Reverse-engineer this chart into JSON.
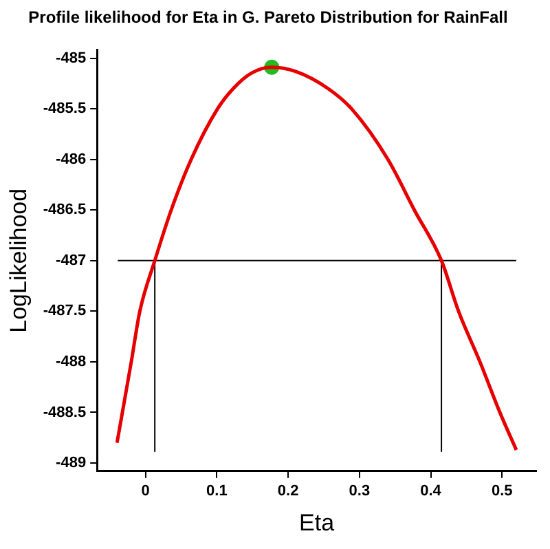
{
  "chart_data": {
    "type": "line",
    "title": "Profile likelihood for Eta in G. Pareto Distribution for RainFall",
    "xlabel": "Eta",
    "ylabel": "LogLikelihood",
    "xlim": [
      -0.068,
      0.548
    ],
    "xticks": [
      0,
      0.1,
      0.2,
      0.3,
      0.4,
      0.5
    ],
    "ylim": [
      -489.08,
      -484.92
    ],
    "yticks": [
      -485,
      -485.5,
      -486,
      -486.5,
      -487,
      -487.5,
      -488,
      -488.5,
      -489
    ],
    "grid": false,
    "legend": false,
    "series": [
      {
        "type": "line",
        "color": "#e60000",
        "x": [
          -0.04,
          -0.02,
          -0.008,
          0.013,
          0.036,
          0.064,
          0.101,
          0.123,
          0.148,
          0.177,
          0.21,
          0.256,
          0.289,
          0.34,
          0.377,
          0.415,
          0.439,
          0.469,
          0.497,
          0.52
        ],
        "values": [
          -488.8,
          -488,
          -487.5,
          -487,
          -486.5,
          -486,
          -485.5,
          -485.3,
          -485.15,
          -485.09,
          -485.13,
          -485.3,
          -485.5,
          -486,
          -486.5,
          -487,
          -487.5,
          -488,
          -488.5,
          -488.87
        ]
      },
      {
        "type": "line",
        "color": "#000000",
        "x": [
          -0.039,
          0.52
        ],
        "values": [
          -487,
          -487
        ]
      },
      {
        "type": "line",
        "color": "#000000",
        "x": [
          0.013,
          0.013
        ],
        "values": [
          -487,
          -488.89
        ]
      },
      {
        "type": "line",
        "color": "#000000",
        "x": [
          0.415,
          0.415
        ],
        "values": [
          -487,
          -488.89
        ]
      },
      {
        "type": "scatter",
        "color": "#22bb22",
        "marker": "circle",
        "x": [
          0.177
        ],
        "values": [
          -485.09
        ]
      }
    ]
  }
}
